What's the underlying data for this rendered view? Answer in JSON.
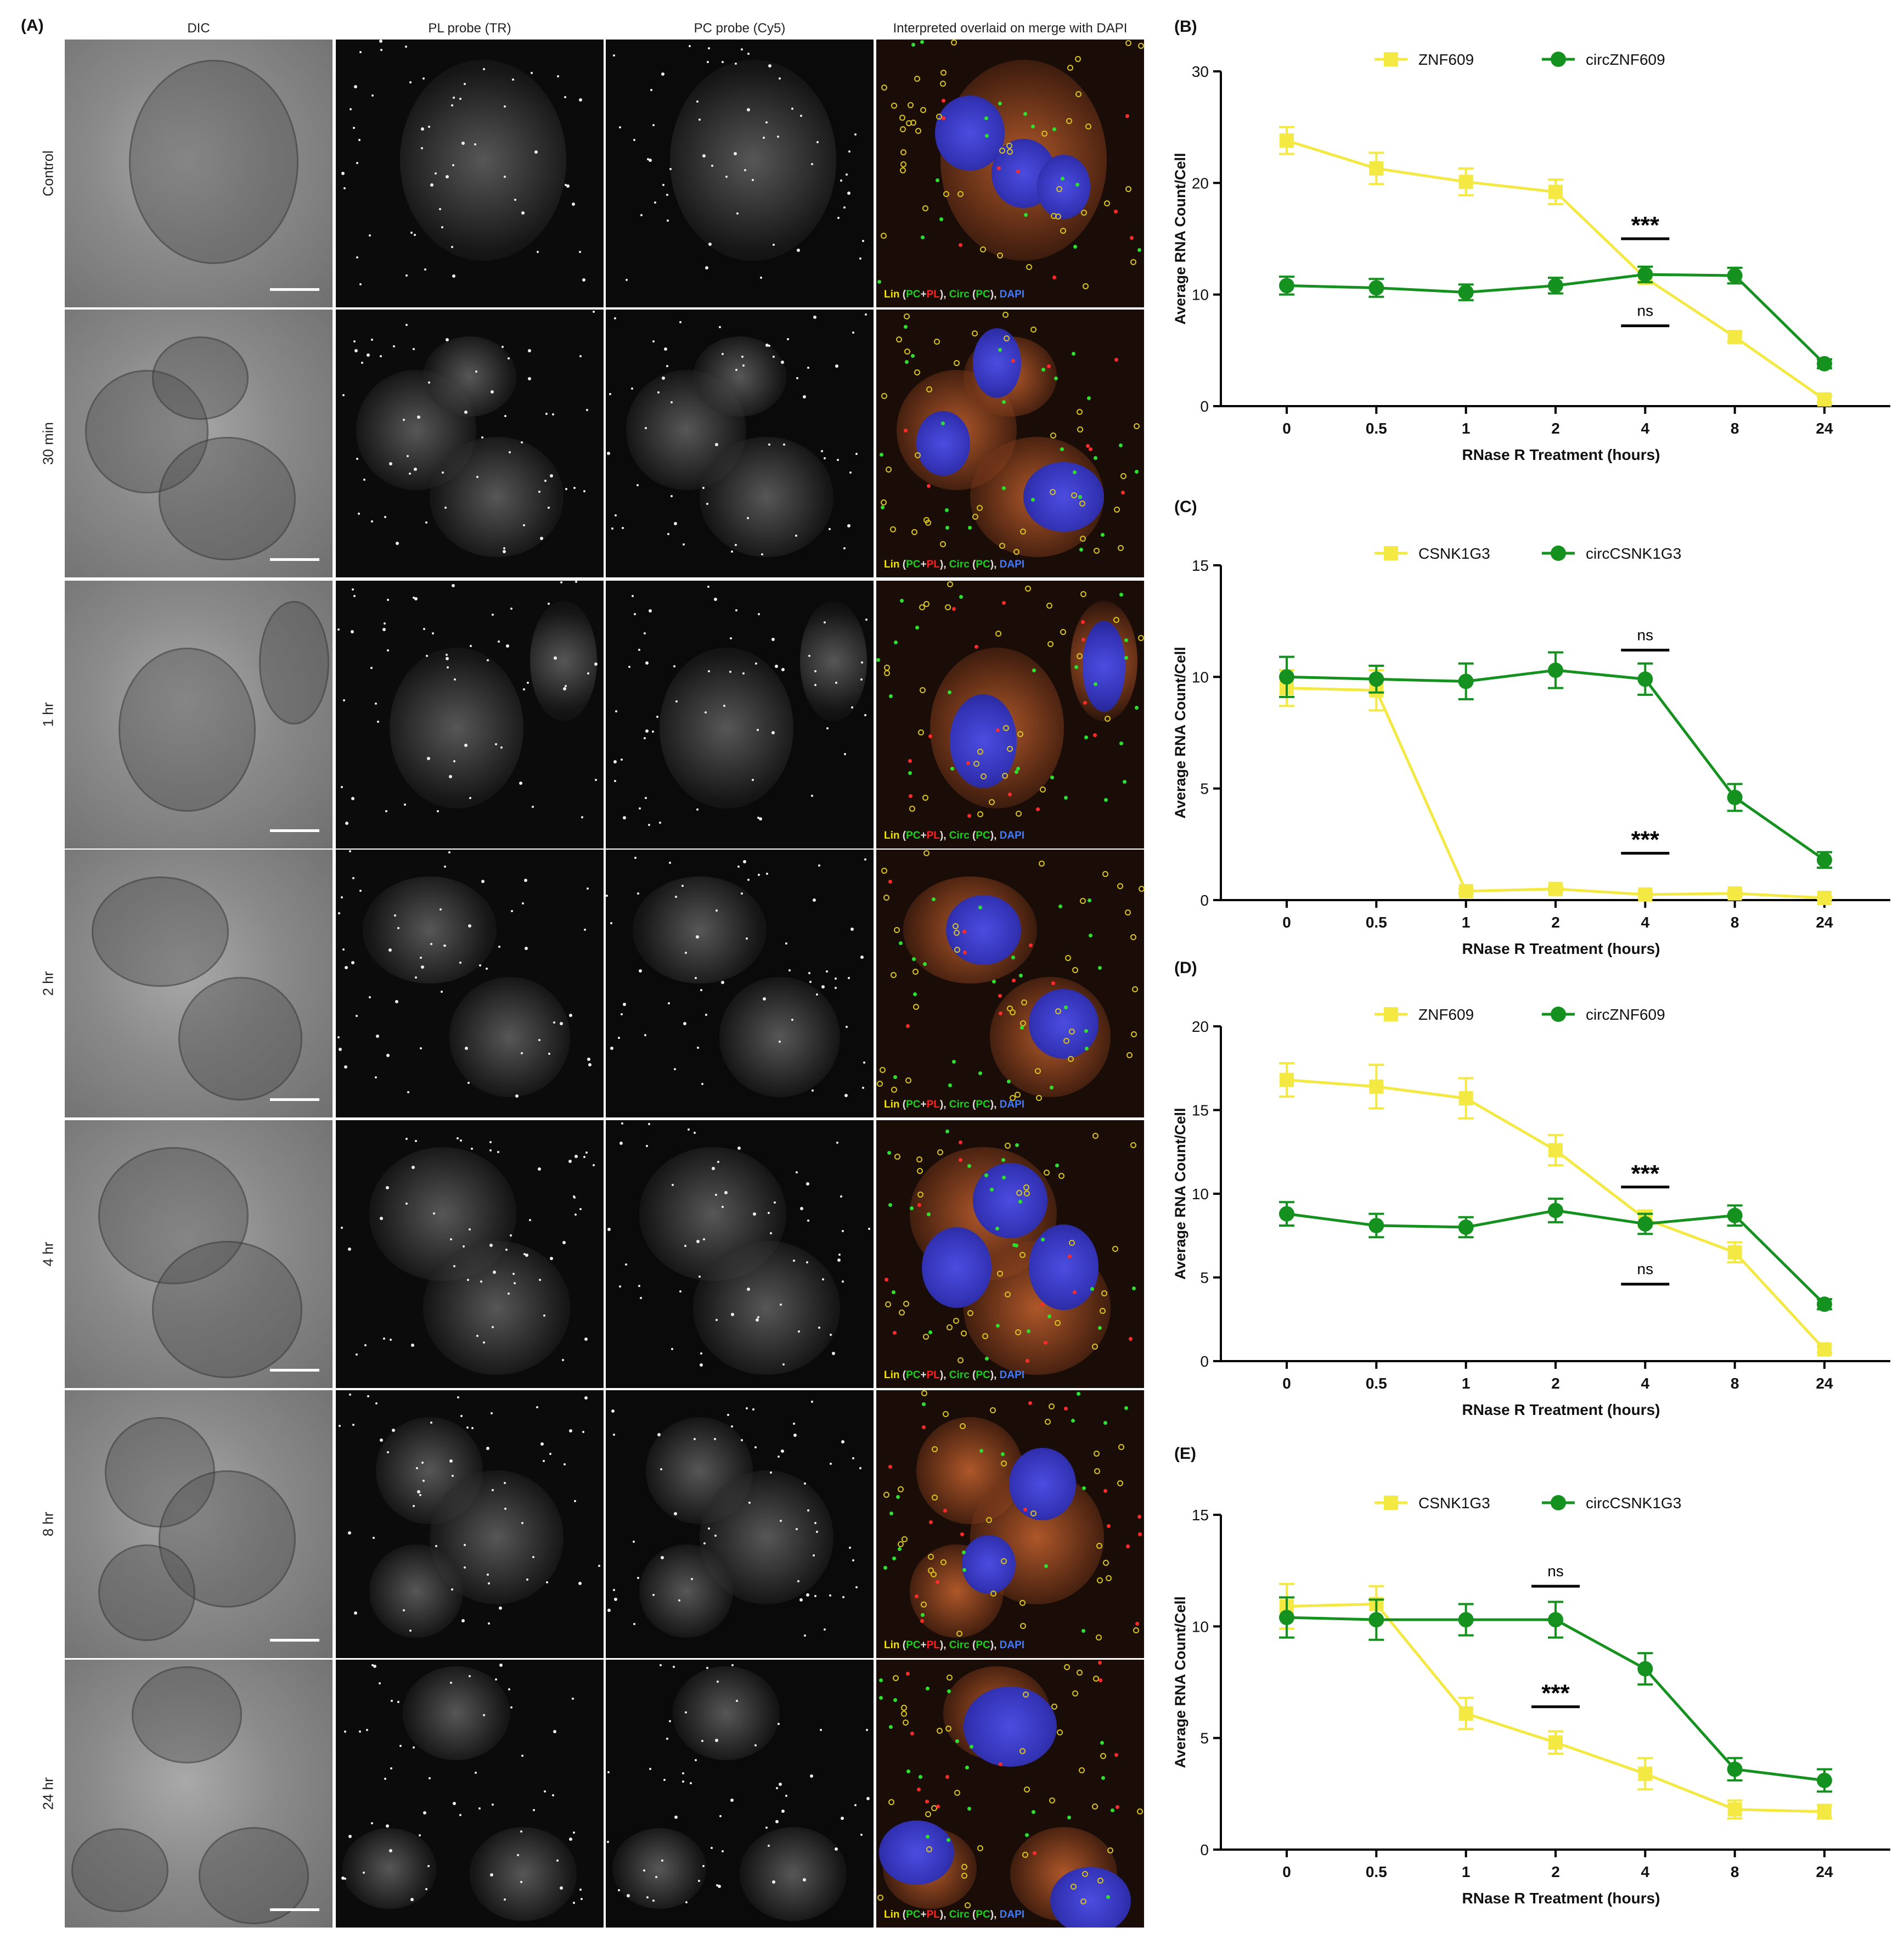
{
  "panels": {
    "A": {
      "letter": "(A)",
      "columns": [
        "DIC",
        "PL probe (TR)",
        "PC probe (Cy5)",
        "Interpreted overlaid on merge with DAPI"
      ],
      "rows": [
        "Control",
        "30 min",
        "1 hr",
        "2 hr",
        "4 hr",
        "8 hr",
        "24 hr"
      ],
      "merge_legend": {
        "lin": "Lin",
        "open": " (",
        "pc": "PC",
        "plus": "+",
        "pl": "PL",
        "mid": "), ",
        "circ": "Circ",
        "open2": " (",
        "pc2": "PC",
        "mid2": "), ",
        "dapi": "DAPI"
      }
    }
  },
  "colors": {
    "linear": "#f4e842",
    "circular": "#14911e"
  },
  "chart_data": [
    {
      "id": "B",
      "letter": "(B)",
      "type": "line",
      "categories": [
        "0",
        "0.5",
        "1",
        "2",
        "4",
        "8",
        "24"
      ],
      "ylim": [
        0,
        30
      ],
      "yticks": [
        0,
        10,
        20,
        30
      ],
      "xlabel": "RNase R Treatment (hours)",
      "ylabel": "Average RNA Count/Cell",
      "legend": "top",
      "series": [
        {
          "name": "ZNF609",
          "marker": "square",
          "values": [
            23.8,
            21.3,
            20.1,
            19.2,
            11.5,
            6.2,
            0.6
          ],
          "errors": [
            1.2,
            1.4,
            1.2,
            1.1,
            0.5,
            0.4,
            0.3
          ]
        },
        {
          "name": "circZNF609",
          "marker": "circle",
          "values": [
            10.8,
            10.6,
            10.2,
            10.8,
            11.8,
            11.7,
            3.8
          ],
          "errors": [
            0.8,
            0.8,
            0.7,
            0.7,
            0.7,
            0.7,
            0.4
          ]
        }
      ],
      "annotations": [
        {
          "text": "***",
          "cat_index": 4,
          "y": 15.0,
          "bold": true
        },
        {
          "text": "ns",
          "cat_index": 4,
          "y": 7.2,
          "bold": false
        }
      ]
    },
    {
      "id": "C",
      "letter": "(C)",
      "type": "line",
      "categories": [
        "0",
        "0.5",
        "1",
        "2",
        "4",
        "8",
        "24"
      ],
      "ylim": [
        0,
        15
      ],
      "yticks": [
        0,
        5,
        10,
        15
      ],
      "xlabel": "RNase R Treatment (hours)",
      "ylabel": "Average RNA Count/Cell",
      "legend": "top",
      "series": [
        {
          "name": "CSNK1G3",
          "marker": "square",
          "values": [
            9.5,
            9.4,
            0.4,
            0.5,
            0.25,
            0.3,
            0.1
          ],
          "errors": [
            0.8,
            0.9,
            0.1,
            0.1,
            0.1,
            0.1,
            0.05
          ]
        },
        {
          "name": "circCSNK1G3",
          "marker": "circle",
          "values": [
            10.0,
            9.9,
            9.8,
            10.3,
            9.9,
            4.6,
            1.8
          ],
          "errors": [
            0.9,
            0.6,
            0.8,
            0.8,
            0.7,
            0.6,
            0.35
          ]
        }
      ],
      "annotations": [
        {
          "text": "ns",
          "cat_index": 4,
          "y": 11.2,
          "bold": false
        },
        {
          "text": "***",
          "cat_index": 4,
          "y": 2.1,
          "bold": true
        }
      ]
    },
    {
      "id": "D",
      "letter": "(D)",
      "type": "line",
      "categories": [
        "0",
        "0.5",
        "1",
        "2",
        "4",
        "8",
        "24"
      ],
      "ylim": [
        0,
        20
      ],
      "yticks": [
        0,
        5,
        10,
        15,
        20
      ],
      "xlabel": "RNase R Treatment (hours)",
      "ylabel": "Average RNA Count/Cell",
      "legend": "top",
      "series": [
        {
          "name": "ZNF609",
          "marker": "square",
          "values": [
            16.8,
            16.4,
            15.7,
            12.6,
            8.5,
            6.5,
            0.7
          ],
          "errors": [
            1.0,
            1.3,
            1.2,
            0.9,
            0.5,
            0.6,
            0.2
          ]
        },
        {
          "name": "circZNF609",
          "marker": "circle",
          "values": [
            8.8,
            8.1,
            8.0,
            9.0,
            8.2,
            8.7,
            3.4
          ],
          "errors": [
            0.7,
            0.7,
            0.6,
            0.7,
            0.6,
            0.6,
            0.3
          ]
        }
      ],
      "annotations": [
        {
          "text": "***",
          "cat_index": 4,
          "y": 10.4,
          "bold": true
        },
        {
          "text": "ns",
          "cat_index": 4,
          "y": 4.6,
          "bold": false
        }
      ]
    },
    {
      "id": "E",
      "letter": "(E)",
      "type": "line",
      "categories": [
        "0",
        "0.5",
        "1",
        "2",
        "4",
        "8",
        "24"
      ],
      "ylim": [
        0,
        15
      ],
      "yticks": [
        0,
        5,
        10,
        15
      ],
      "xlabel": "RNase R Treatment (hours)",
      "ylabel": "Average RNA Count/Cell",
      "legend": "top",
      "series": [
        {
          "name": "CSNK1G3",
          "marker": "square",
          "values": [
            10.9,
            11.0,
            6.1,
            4.8,
            3.4,
            1.8,
            1.7
          ],
          "errors": [
            1.0,
            0.8,
            0.7,
            0.5,
            0.7,
            0.4,
            0.3
          ]
        },
        {
          "name": "circCSNK1G3",
          "marker": "circle",
          "values": [
            10.4,
            10.3,
            10.3,
            10.3,
            8.1,
            3.6,
            3.1
          ],
          "errors": [
            0.9,
            0.9,
            0.7,
            0.8,
            0.7,
            0.5,
            0.5
          ]
        }
      ],
      "annotations": [
        {
          "text": "ns",
          "cat_index": 3,
          "y": 11.8,
          "bold": false
        },
        {
          "text": "***",
          "cat_index": 3,
          "y": 6.4,
          "bold": true
        }
      ]
    }
  ]
}
